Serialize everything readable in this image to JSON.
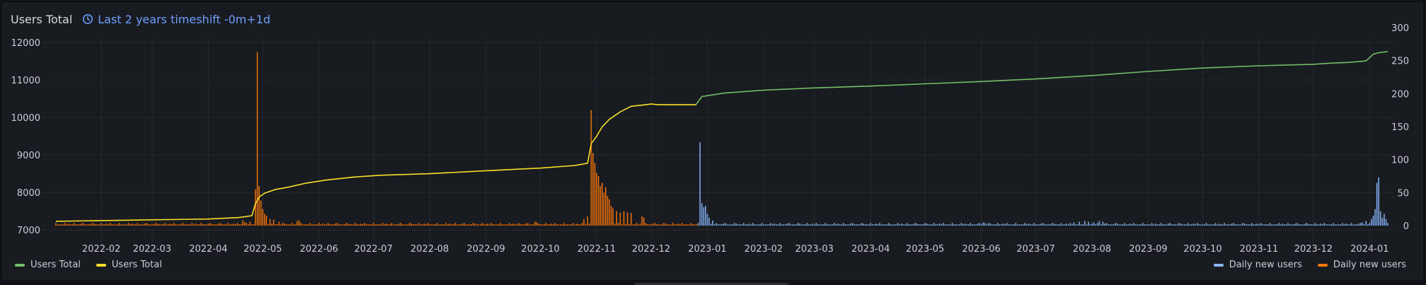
{
  "panel": {
    "title": "Users Total",
    "timeshift_label": "Last 2 years timeshift -0m+1d",
    "icons": {
      "timeshift": "clock-icon"
    }
  },
  "legend": {
    "left": [
      {
        "label": "Users Total",
        "color": "#73bf69"
      },
      {
        "label": "Users Total",
        "color": "#fade2a"
      }
    ],
    "right": [
      {
        "label": "Daily new users",
        "color": "#8ab8ff"
      },
      {
        "label": "Daily new users",
        "color": "#ff780a"
      }
    ]
  },
  "chart_data": {
    "type": "line",
    "x_tick_labels": [
      "2022-02",
      "2022-03",
      "2022-04",
      "2022-05",
      "2022-06",
      "2022-07",
      "2022-08",
      "2022-09",
      "2022-10",
      "2022-11",
      "2022-12",
      "2023-01",
      "2023-02",
      "2023-03",
      "2023-04",
      "2023-05",
      "2023-06",
      "2023-07",
      "2023-08",
      "2023-09",
      "2023-10",
      "2023-11",
      "2023-12",
      "2024-01"
    ],
    "xlim": [
      "2022-01-07",
      "2024-01-11"
    ],
    "y_left": {
      "ticks": [
        7000,
        8000,
        9000,
        10000,
        11000,
        12000
      ],
      "lim": [
        6700,
        12400
      ]
    },
    "y_right": {
      "ticks": [
        0,
        50,
        100,
        150,
        200,
        250,
        300
      ],
      "lim": [
        -23.5,
        300
      ]
    },
    "grid": true,
    "legend_placement": "bottom",
    "series": [
      {
        "name": "Users Total",
        "axis": "left",
        "color": "#fade2a",
        "points": [
          [
            "2022-01-07",
            7230
          ],
          [
            "2022-02-01",
            7250
          ],
          [
            "2022-03-01",
            7270
          ],
          [
            "2022-04-01",
            7290
          ],
          [
            "2022-04-18",
            7330
          ],
          [
            "2022-04-25",
            7380
          ],
          [
            "2022-04-27",
            7700
          ],
          [
            "2022-04-29",
            7880
          ],
          [
            "2022-05-02",
            7980
          ],
          [
            "2022-05-08",
            8080
          ],
          [
            "2022-05-15",
            8140
          ],
          [
            "2022-05-25",
            8250
          ],
          [
            "2022-06-05",
            8330
          ],
          [
            "2022-06-20",
            8410
          ],
          [
            "2022-07-05",
            8460
          ],
          [
            "2022-08-01",
            8500
          ],
          [
            "2022-09-01",
            8580
          ],
          [
            "2022-10-01",
            8650
          ],
          [
            "2022-10-20",
            8720
          ],
          [
            "2022-10-27",
            8780
          ],
          [
            "2022-10-29",
            9300
          ],
          [
            "2022-11-01",
            9500
          ],
          [
            "2022-11-04",
            9750
          ],
          [
            "2022-11-08",
            9950
          ],
          [
            "2022-11-14",
            10150
          ],
          [
            "2022-11-20",
            10300
          ],
          [
            "2022-11-26",
            10330
          ],
          [
            "2022-12-01",
            10360
          ],
          [
            "2022-12-05",
            10340
          ],
          [
            "2022-12-10",
            10340
          ],
          [
            "2022-12-26",
            10340
          ]
        ]
      },
      {
        "name": "Users Total",
        "axis": "left",
        "color": "#73bf69",
        "points": [
          [
            "2022-12-26",
            10360
          ],
          [
            "2022-12-29",
            10560
          ],
          [
            "2023-01-10",
            10650
          ],
          [
            "2023-02-01",
            10730
          ],
          [
            "2023-03-01",
            10790
          ],
          [
            "2023-04-01",
            10840
          ],
          [
            "2023-05-01",
            10900
          ],
          [
            "2023-06-01",
            10960
          ],
          [
            "2023-07-01",
            11030
          ],
          [
            "2023-08-01",
            11120
          ],
          [
            "2023-09-01",
            11230
          ],
          [
            "2023-10-01",
            11320
          ],
          [
            "2023-11-01",
            11380
          ],
          [
            "2023-12-01",
            11420
          ],
          [
            "2023-12-10",
            11450
          ],
          [
            "2023-12-20",
            11470
          ],
          [
            "2023-12-30",
            11510
          ],
          [
            "2024-01-03",
            11690
          ],
          [
            "2024-01-06",
            11730
          ],
          [
            "2024-01-11",
            11760
          ]
        ]
      },
      {
        "name": "Daily new users",
        "axis": "right",
        "type": "bar",
        "color": "#ff780a",
        "date_range": [
          "2022-01-07",
          "2022-12-26"
        ],
        "baseline_value": 2,
        "spikes": [
          [
            "2022-04-20",
            8
          ],
          [
            "2022-04-21",
            5
          ],
          [
            "2022-04-22",
            4
          ],
          [
            "2022-04-24",
            6
          ],
          [
            "2022-04-27",
            55
          ],
          [
            "2022-04-28",
            263
          ],
          [
            "2022-04-29",
            60
          ],
          [
            "2022-04-30",
            38
          ],
          [
            "2022-05-01",
            25
          ],
          [
            "2022-05-02",
            18
          ],
          [
            "2022-05-03",
            15
          ],
          [
            "2022-05-05",
            10
          ],
          [
            "2022-05-07",
            9
          ],
          [
            "2022-05-10",
            6
          ],
          [
            "2022-05-20",
            7
          ],
          [
            "2022-05-21",
            8
          ],
          [
            "2022-09-28",
            6
          ],
          [
            "2022-09-29",
            5
          ],
          [
            "2022-10-25",
            10
          ],
          [
            "2022-10-27",
            14
          ],
          [
            "2022-10-29",
            175
          ],
          [
            "2022-10-30",
            110
          ],
          [
            "2022-10-31",
            95
          ],
          [
            "2022-11-01",
            80
          ],
          [
            "2022-11-02",
            75
          ],
          [
            "2022-11-03",
            60
          ],
          [
            "2022-11-04",
            65
          ],
          [
            "2022-11-05",
            50
          ],
          [
            "2022-11-06",
            58
          ],
          [
            "2022-11-07",
            45
          ],
          [
            "2022-11-08",
            40
          ],
          [
            "2022-11-09",
            30
          ],
          [
            "2022-11-10",
            26
          ],
          [
            "2022-11-12",
            22
          ],
          [
            "2022-11-14",
            20
          ],
          [
            "2022-11-16",
            22
          ],
          [
            "2022-11-18",
            20
          ],
          [
            "2022-11-20",
            19
          ],
          [
            "2022-11-26",
            14
          ],
          [
            "2022-11-27",
            12
          ]
        ]
      },
      {
        "name": "Daily new users",
        "axis": "right",
        "type": "bar",
        "color": "#8ab8ff",
        "date_range": [
          "2022-12-27",
          "2024-01-11"
        ],
        "baseline_value": 2,
        "spikes": [
          [
            "2022-12-28",
            126
          ],
          [
            "2022-12-29",
            34
          ],
          [
            "2022-12-30",
            28
          ],
          [
            "2022-12-31",
            30
          ],
          [
            "2023-01-01",
            18
          ],
          [
            "2023-01-02",
            12
          ],
          [
            "2023-01-04",
            8
          ],
          [
            "2023-06-02",
            5
          ],
          [
            "2023-06-03",
            4
          ],
          [
            "2023-07-22",
            5
          ],
          [
            "2023-07-25",
            6
          ],
          [
            "2023-07-28",
            7
          ],
          [
            "2023-07-30",
            6
          ],
          [
            "2023-08-02",
            5
          ],
          [
            "2023-08-05",
            7
          ],
          [
            "2023-08-07",
            6
          ],
          [
            "2023-12-28",
            5
          ],
          [
            "2023-12-30",
            7
          ],
          [
            "2024-01-02",
            10
          ],
          [
            "2024-01-03",
            15
          ],
          [
            "2024-01-04",
            25
          ],
          [
            "2024-01-05",
            65
          ],
          [
            "2024-01-06",
            73
          ],
          [
            "2024-01-07",
            22
          ],
          [
            "2024-01-08",
            12
          ],
          [
            "2024-01-09",
            18
          ],
          [
            "2024-01-10",
            10
          ]
        ]
      }
    ]
  }
}
